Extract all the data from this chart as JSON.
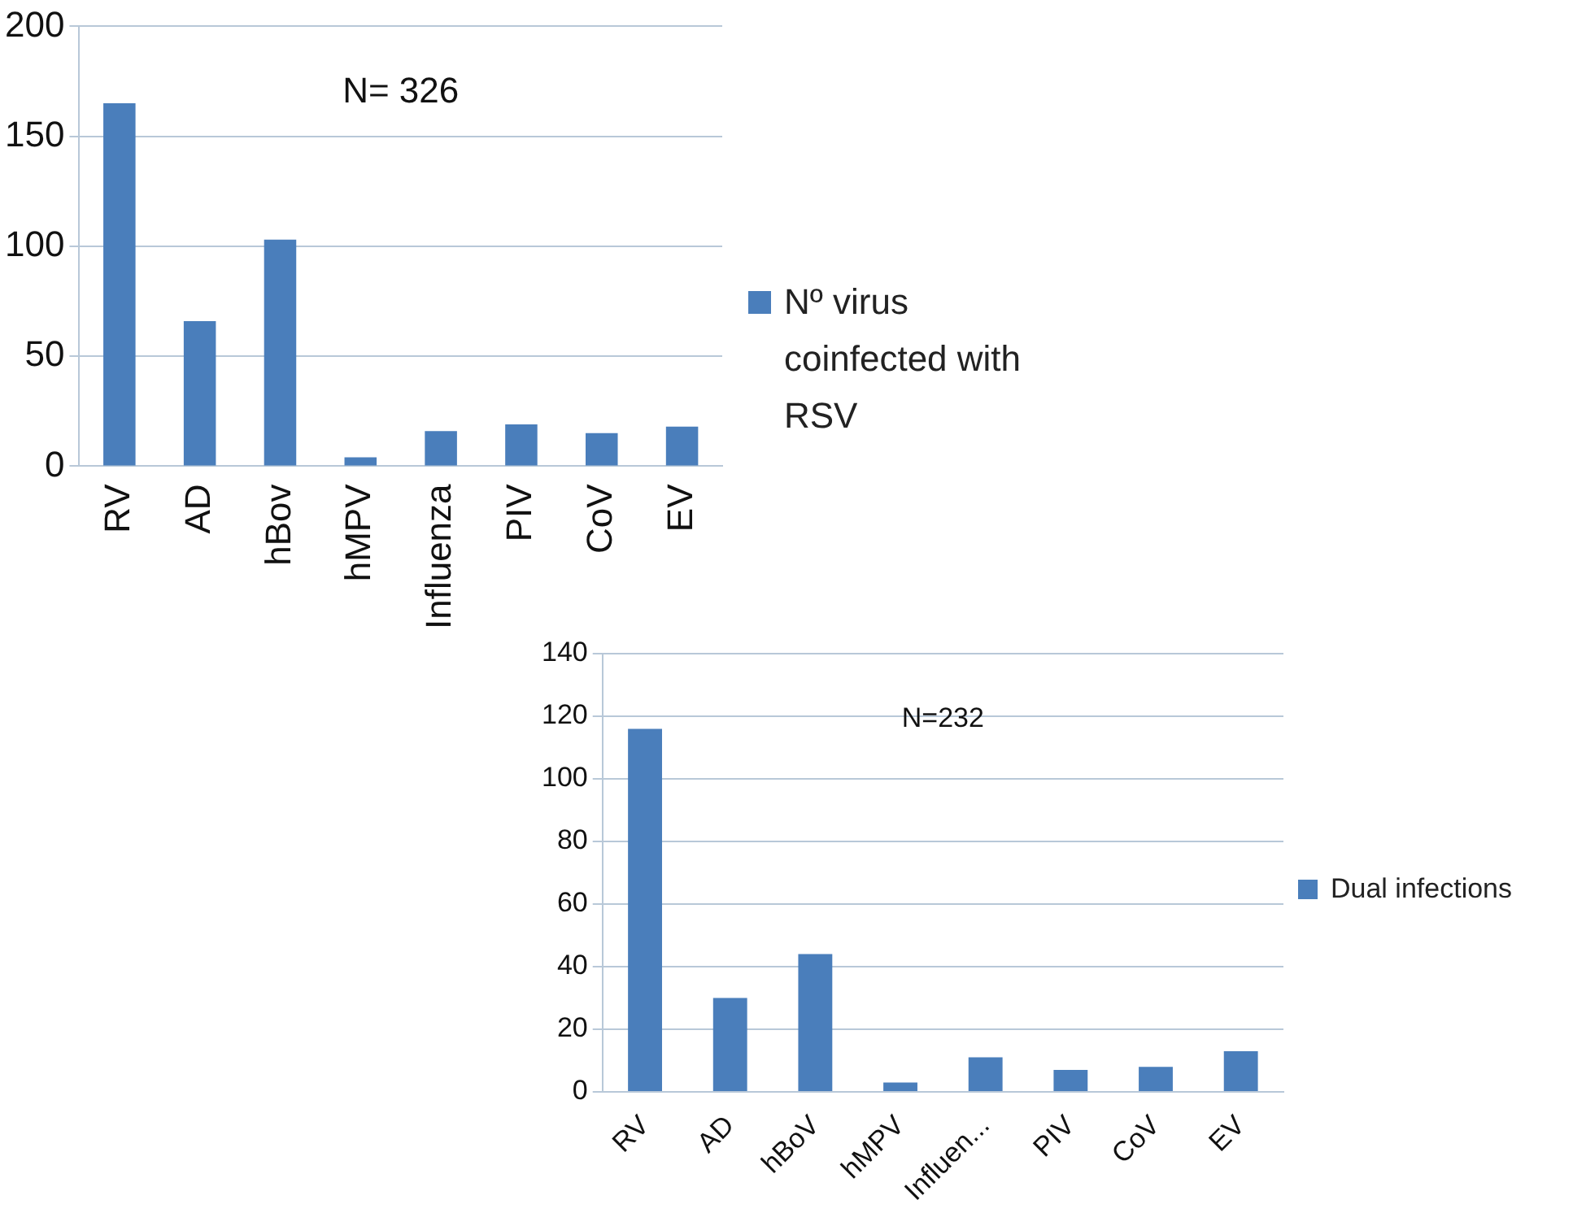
{
  "chart_data": [
    {
      "type": "bar",
      "annotations": [
        "N= 326"
      ],
      "categories": [
        "RV",
        "AD",
        "hBov",
        "hMPV",
        "Influenza",
        "PIV",
        "CoV",
        "EV"
      ],
      "series": [
        {
          "name": "Nº virus coinfected with RSV",
          "color": "#4a7ebb",
          "values": [
            165,
            66,
            103,
            4,
            16,
            19,
            15,
            18
          ]
        }
      ],
      "ylim": [
        0,
        200
      ],
      "yticks": [
        0,
        50,
        100,
        150,
        200
      ],
      "grid": "y",
      "legend": "right"
    },
    {
      "type": "bar",
      "annotations": [
        "N=232"
      ],
      "categories": [
        "RV",
        "AD",
        "hBoV",
        "hMPV",
        "Influen...",
        "PIV",
        "CoV",
        "EV"
      ],
      "series": [
        {
          "name": "Dual infections",
          "color": "#4a7ebb",
          "values": [
            116,
            30,
            44,
            3,
            11,
            7,
            8,
            13
          ]
        }
      ],
      "ylim": [
        0,
        140
      ],
      "yticks": [
        0,
        20,
        40,
        60,
        80,
        100,
        120,
        140
      ],
      "grid": "y",
      "legend": "right"
    }
  ]
}
